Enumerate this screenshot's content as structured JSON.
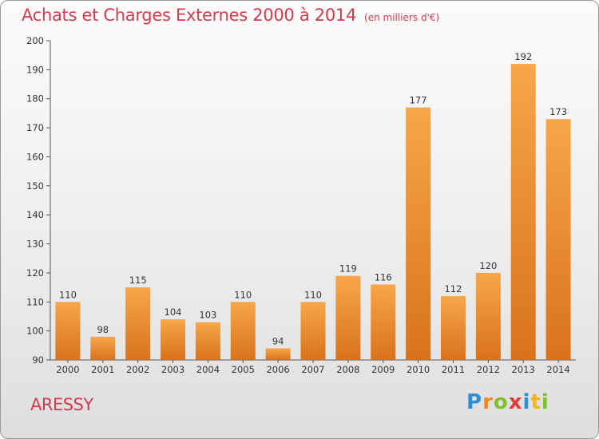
{
  "title": "Achats et Charges Externes 2000 à 2014",
  "unit_note": "(en milliers d'€)",
  "commune": "ARESSY",
  "logo": {
    "text": "Proxiti"
  },
  "colors": {
    "title": "#d23c50",
    "bar_light": "#f7a64a",
    "bar_dark": "#d8731c",
    "axis": "#555555"
  },
  "chart_data": {
    "type": "bar",
    "title": "Achats et Charges Externes 2000 à 2014",
    "subtitle": "(en milliers d'€)",
    "categories": [
      "2000",
      "2001",
      "2002",
      "2003",
      "2004",
      "2005",
      "2006",
      "2007",
      "2008",
      "2009",
      "2010",
      "2011",
      "2012",
      "2013",
      "2014"
    ],
    "values": [
      110,
      98,
      115,
      104,
      103,
      110,
      94,
      110,
      119,
      116,
      177,
      112,
      120,
      192,
      173
    ],
    "ylim": [
      90,
      200
    ],
    "yticks": [
      90,
      100,
      110,
      120,
      130,
      140,
      150,
      160,
      170,
      180,
      190,
      200
    ],
    "grid": false,
    "data_labels": true
  }
}
